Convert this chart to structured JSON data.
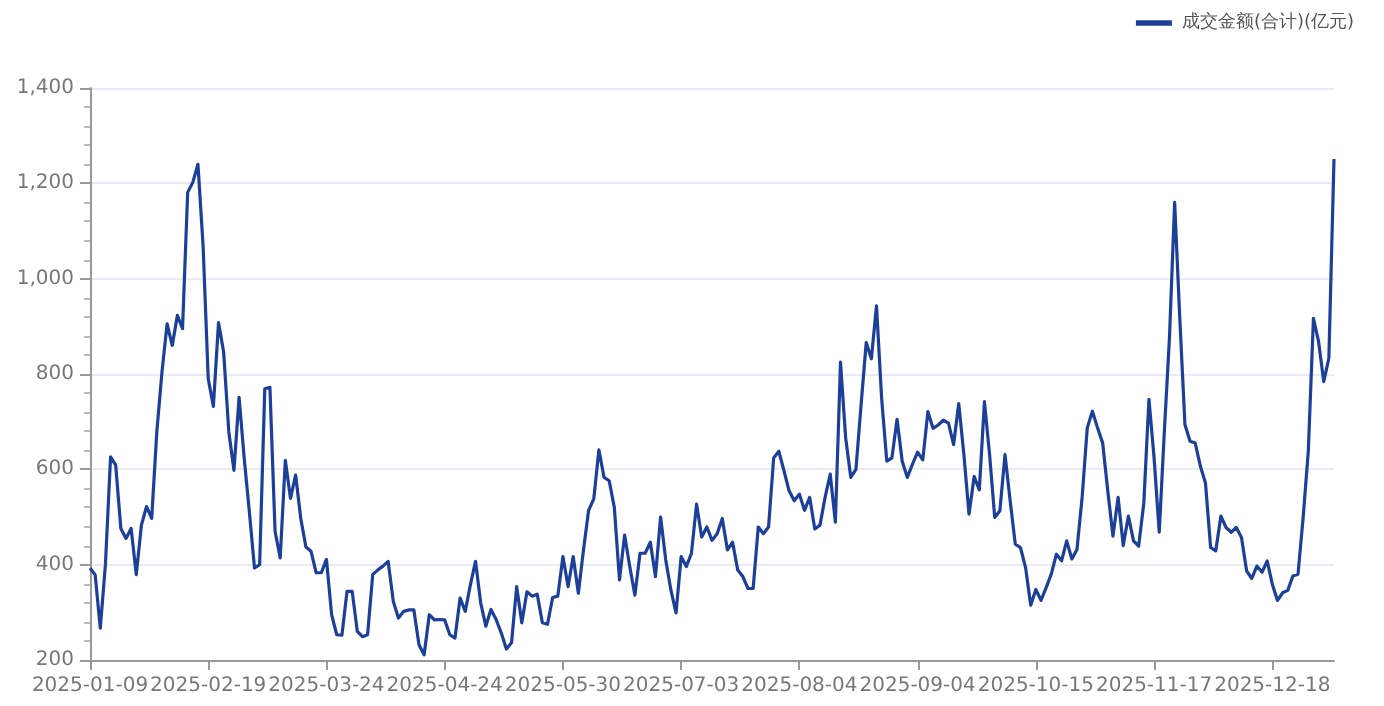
{
  "chart_data": {
    "type": "line",
    "categories": [
      "2025-01-09",
      null,
      null,
      null,
      null,
      null,
      null,
      null,
      null,
      null,
      null,
      null,
      null,
      null,
      null,
      null,
      null,
      null,
      null,
      null,
      null,
      null,
      null,
      "2025-02-19",
      null,
      null,
      null,
      null,
      null,
      null,
      null,
      null,
      null,
      null,
      null,
      null,
      null,
      null,
      null,
      null,
      null,
      null,
      null,
      null,
      null,
      null,
      "2025-03-24",
      null,
      null,
      null,
      null,
      null,
      null,
      null,
      null,
      null,
      null,
      null,
      null,
      null,
      null,
      null,
      null,
      null,
      null,
      null,
      null,
      null,
      null,
      "2025-04-24",
      null,
      null,
      null,
      null,
      null,
      null,
      null,
      null,
      null,
      null,
      null,
      null,
      null,
      null,
      null,
      null,
      null,
      null,
      null,
      null,
      null,
      null,
      "2025-05-30",
      null,
      null,
      null,
      null,
      null,
      null,
      null,
      null,
      null,
      null,
      null,
      null,
      null,
      null,
      null,
      null,
      null,
      null,
      null,
      null,
      null,
      null,
      "2025-07-03",
      null,
      null,
      null,
      null,
      null,
      null,
      null,
      null,
      null,
      null,
      null,
      null,
      null,
      null,
      null,
      null,
      null,
      null,
      null,
      null,
      null,
      null,
      "2025-08-04",
      null,
      null,
      null,
      null,
      null,
      null,
      null,
      null,
      null,
      null,
      null,
      null,
      null,
      null,
      null,
      null,
      null,
      null,
      null,
      null,
      null,
      null,
      "2025-09-04",
      null,
      null,
      null,
      null,
      null,
      null,
      null,
      null,
      null,
      null,
      null,
      null,
      null,
      null,
      null,
      null,
      null,
      null,
      null,
      null,
      null,
      null,
      "2025-10-15",
      null,
      null,
      null,
      null,
      null,
      null,
      null,
      null,
      null,
      null,
      null,
      null,
      null,
      null,
      null,
      null,
      null,
      null,
      null,
      null,
      null,
      null,
      "2025-11-17",
      null,
      null,
      null,
      null,
      null,
      null,
      null,
      null,
      null,
      null,
      null,
      null,
      null,
      null,
      null,
      null,
      null,
      null,
      null,
      null,
      null,
      null,
      "2025-12-18",
      null,
      null,
      null,
      null,
      null,
      null,
      null,
      null,
      null,
      null,
      null,
      null
    ],
    "series": [
      {
        "name": "成交金额(合计)(亿元)",
        "color": "#1c3f9a",
        "values": [
          393,
          379,
          267,
          400,
          626,
          609,
          476,
          455,
          476,
          379,
          483,
          522,
          497,
          679,
          804,
          905,
          860,
          923,
          895,
          1181,
          1202,
          1240,
          1069,
          790,
          732,
          908,
          846,
          679,
          598,
          751,
          623,
          511,
          393,
          400,
          769,
          772,
          470,
          414,
          619,
          539,
          588,
          497,
          437,
          428,
          383,
          383,
          411,
          295,
          253,
          252,
          344,
          344,
          260,
          249,
          253,
          379,
          389,
          397,
          407,
          323,
          288,
          302,
          305,
          305,
          232,
          211,
          295,
          284,
          285,
          284,
          253,
          246,
          330,
          302,
          358,
          407,
          320,
          271,
          306,
          285,
          257,
          223,
          236,
          354,
          278,
          343,
          334,
          338,
          278,
          275,
          331,
          334,
          417,
          354,
          417,
          340,
          431,
          514,
          538,
          641,
          583,
          576,
          520,
          368,
          462,
          396,
          336,
          424,
          424,
          447,
          375,
          500,
          410,
          347,
          299,
          417,
          396,
          424,
          527,
          458,
          479,
          451,
          465,
          497,
          431,
          447,
          389,
          375,
          350,
          350,
          479,
          465,
          479,
          624,
          638,
          597,
          555,
          534,
          548,
          514,
          541,
          475,
          483,
          541,
          590,
          489,
          825,
          666,
          583,
          600,
          735,
          866,
          832,
          943,
          749,
          617,
          624,
          705,
          617,
          583,
          611,
          636,
          620,
          721,
          686,
          693,
          703,
          697,
          652,
          738,
          631,
          506,
          585,
          557,
          742,
          631,
          499,
          513,
          631,
          534,
          443,
          436,
          394,
          315,
          348,
          325,
          352,
          380,
          422,
          408,
          450,
          412,
          432,
          541,
          687,
          722,
          687,
          655,
          554,
          460,
          541,
          440,
          502,
          450,
          439,
          529,
          747,
          624,
          468,
          680,
          878,
          1160,
          917,
          694,
          659,
          655,
          607,
          571,
          436,
          429,
          502,
          478,
          468,
          478,
          457,
          387,
          371,
          397,
          384,
          408,
          359,
          325,
          341,
          346,
          376,
          380,
          499,
          638,
          917,
          868,
          784,
          833,
          1251
        ]
      }
    ],
    "ylim": [
      200,
      1400
    ],
    "yticks": [
      200,
      400,
      600,
      800,
      {
        "value": 1000,
        "label": "1,000"
      },
      {
        "value": 1200,
        "label": "1,200"
      },
      {
        "value": 1400,
        "label": "1,400"
      }
    ],
    "grid": "y",
    "legend": "top right",
    "marker": "none"
  }
}
